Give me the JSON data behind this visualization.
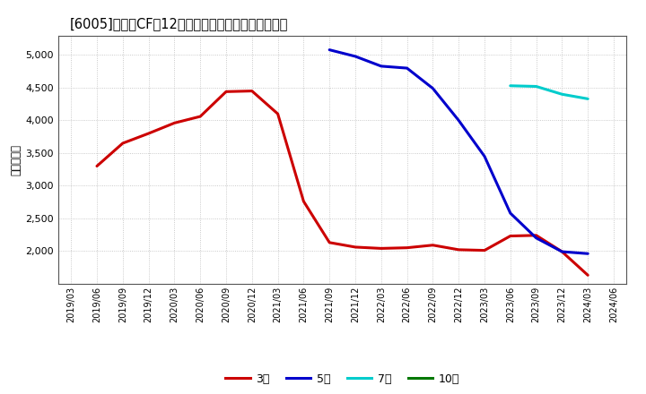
{
  "title": "[6005]　営業CFの12か月移動合計の標準偶差の推移",
  "ylabel": "（百万円）",
  "background_color": "#ffffff",
  "plot_bg_color": "#ffffff",
  "grid_color": "#aaaaaa",
  "ylim": [
    1500,
    5300
  ],
  "yticks": [
    2000,
    2500,
    3000,
    3500,
    4000,
    4500,
    5000
  ],
  "series": {
    "3year": {
      "label": "3年",
      "color": "#cc0000",
      "x": [
        "2019/06",
        "2019/09",
        "2019/12",
        "2020/03",
        "2020/06",
        "2020/09",
        "2020/12",
        "2021/03",
        "2021/06",
        "2021/09",
        "2021/12",
        "2022/03",
        "2022/06",
        "2022/09",
        "2022/12",
        "2023/03",
        "2023/06",
        "2023/09",
        "2023/12",
        "2024/03"
      ],
      "y": [
        3300,
        3650,
        3800,
        3960,
        4060,
        4440,
        4450,
        4100,
        2760,
        2130,
        2060,
        2040,
        2050,
        2090,
        2020,
        2010,
        2230,
        2240,
        1990,
        1630
      ]
    },
    "5year": {
      "label": "5年",
      "color": "#0000cc",
      "x": [
        "2021/09",
        "2021/12",
        "2022/03",
        "2022/06",
        "2022/09",
        "2022/12",
        "2023/03",
        "2023/06",
        "2023/09",
        "2023/12",
        "2024/03"
      ],
      "y": [
        5080,
        4980,
        4830,
        4800,
        4490,
        4000,
        3450,
        2580,
        2200,
        1990,
        1960
      ]
    },
    "7year": {
      "label": "7年",
      "color": "#00cccc",
      "x": [
        "2023/06",
        "2023/09",
        "2023/12",
        "2024/03"
      ],
      "y": [
        4530,
        4520,
        4400,
        4330
      ]
    },
    "10year": {
      "label": "10年",
      "color": "#007700",
      "x": [],
      "y": []
    }
  },
  "xtick_labels": [
    "2019/03",
    "2019/06",
    "2019/09",
    "2019/12",
    "2020/03",
    "2020/06",
    "2020/09",
    "2020/12",
    "2021/03",
    "2021/06",
    "2021/09",
    "2021/12",
    "2022/03",
    "2022/06",
    "2022/09",
    "2022/12",
    "2023/03",
    "2023/06",
    "2023/09",
    "2023/12",
    "2024/03",
    "2024/06"
  ],
  "legend": [
    {
      "label": "3年",
      "color": "#cc0000"
    },
    {
      "label": "5年",
      "color": "#0000cc"
    },
    {
      "label": "7年",
      "color": "#00cccc"
    },
    {
      "label": "10年",
      "color": "#007700"
    }
  ]
}
